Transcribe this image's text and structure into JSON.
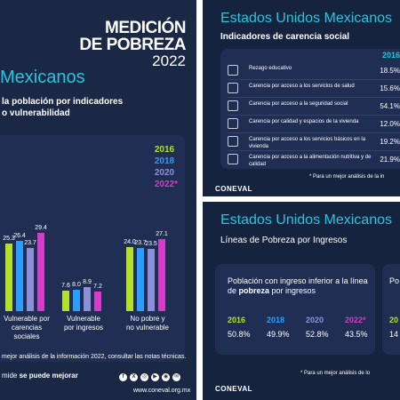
{
  "left": {
    "brand_line1": "MEDICIÓN",
    "brand_line2": "DE POBREZA",
    "brand_line3": "2022",
    "title": "Mexicanos",
    "subtitle_line1": "la población por indicadores",
    "subtitle_line2": "o vulnerabilidad",
    "legend": [
      "2016",
      "2018",
      "2020",
      "2022*"
    ],
    "footnote": "mejor análisis de la información 2022, consultar las notas técnicas.",
    "slogan_pre": "mide",
    "slogan_bold": "se puede mejorar",
    "site": "www.coneval.org.mx"
  },
  "chart_data": {
    "type": "bar",
    "categories": [
      "Vulnerable por carencias sociales",
      "Vulnerable por ingresos",
      "No pobre y no vulnerable"
    ],
    "category_lines": [
      [
        "Vulnerable por",
        "carencias sociales"
      ],
      [
        "Vulnerable",
        "por ingresos"
      ],
      [
        "No pobre y",
        "no vulnerable"
      ]
    ],
    "series": [
      {
        "name": "2016",
        "values": [
          25.3,
          7.6,
          24.0
        ]
      },
      {
        "name": "2018",
        "values": [
          26.4,
          8.0,
          23.7
        ]
      },
      {
        "name": "2020",
        "values": [
          23.7,
          8.9,
          23.5
        ]
      },
      {
        "name": "2022*",
        "values": [
          29.4,
          7.2,
          27.1
        ]
      }
    ],
    "ylim": [
      0,
      40
    ]
  },
  "colors": {
    "s2016": "#b3e12b",
    "s2018": "#2a9dff",
    "s2020": "#8e8fd9",
    "s2022": "#d43cc9",
    "cyan": "#27c5dc"
  },
  "top_right": {
    "title": "Estados Unidos Mexicanos",
    "subtitle": "Indicadores de carencia social",
    "year": "2016",
    "rows": [
      {
        "icon": "education-icon",
        "label": "Rezago educativo",
        "value": "18.5%"
      },
      {
        "icon": "health-icon",
        "label": "Carencia por acceso a los servicios de salud",
        "value": "15.6%"
      },
      {
        "icon": "social-security-icon",
        "label": "Carencia por acceso a la seguridad social",
        "value": "54.1%"
      },
      {
        "icon": "housing-icon",
        "label": "Carencia por calidad y espacios de la vivienda",
        "value": "12.0%"
      },
      {
        "icon": "basic-services-icon",
        "label": "Carencia por acceso a los servicios básicos en la vivienda",
        "value": "19.2%"
      },
      {
        "icon": "food-icon",
        "label": "Carencia por acceso a la alimentación nutritiva y de calidad",
        "value": "21.9%"
      }
    ],
    "note": "* Para un mejor análisis de la in",
    "logo": "CONEVAL"
  },
  "bottom_right": {
    "title": "Estados Unidos Mexicanos",
    "subtitle": "Líneas de Pobreza por Ingresos",
    "text_pre": "Población con ingreso inferior a la línea de ",
    "text_bold": "pobreza",
    "text_post": " por ingresos",
    "years": [
      "2016",
      "2018",
      "2020",
      "2022*"
    ],
    "values": [
      "50.8%",
      "49.9%",
      "52.8%",
      "43.5%"
    ],
    "card2_text": "Po",
    "card2_year": "20",
    "card2_value": "14",
    "note": "* Para un mejor análisis de lo",
    "logo": "CONEVAL"
  }
}
